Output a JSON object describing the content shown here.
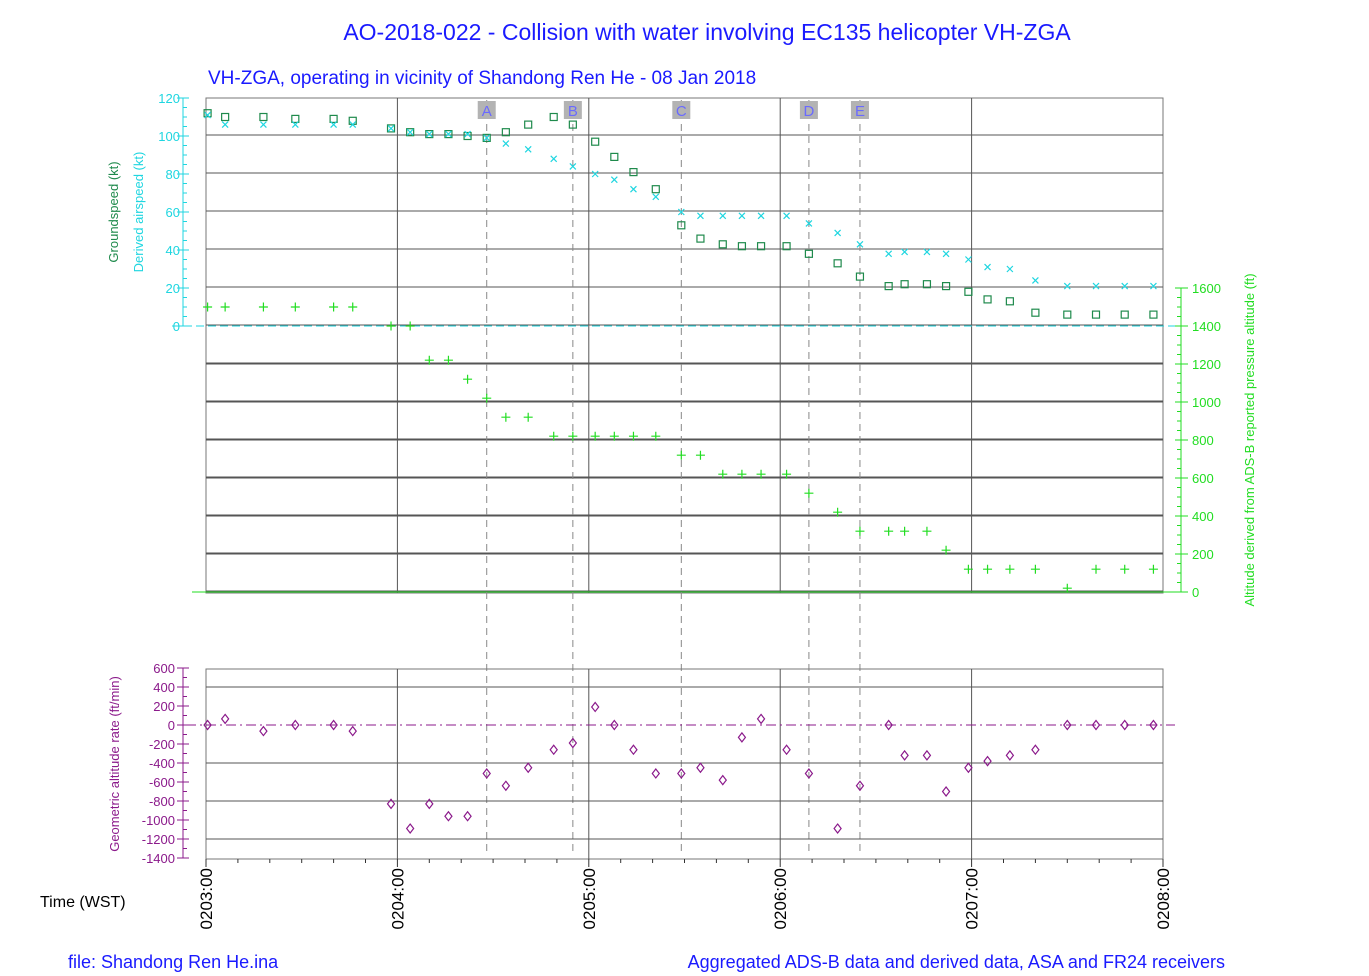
{
  "chart_data": {
    "type": "scatter",
    "title": "AO-2018-022 - Collision with water involving EC135 helicopter VH-ZGA",
    "subtitle": "VH-ZGA, operating in vicinity of Shandong Ren He - 08 Jan 2018",
    "footer_left": "file: Shandong Ren He.ina",
    "footer_right": "Aggregated ADS-B data and derived data, ASA and FR24 receivers",
    "xlabel": "Time (WST)",
    "x_ticks": [
      "0203:00",
      "0204:00",
      "0205:00",
      "0206:00",
      "0207:00",
      "0208:00"
    ],
    "x_range_seconds_after_0203": [
      0,
      300
    ],
    "colors": {
      "groundspeed": "#1f8a4c",
      "airspeed": "#1fd6e0",
      "altitude": "#22dd22",
      "vrate": "#8b1a8b",
      "grid": "#555555",
      "event": "#888888",
      "title": "#1a1aff"
    },
    "speed_axis": {
      "label_groundspeed": "Groundspeed (kt)",
      "label_airspeed": "Derived airspeed (kt)",
      "range": [
        0,
        120
      ],
      "ticks": [
        "0",
        "20",
        "40",
        "60",
        "80",
        "100",
        "120"
      ]
    },
    "altitude_axis": {
      "label": "Altitude derived from ADS-B reported pressure altitude (ft)",
      "range": [
        0,
        1600
      ],
      "ticks": [
        "0",
        "200",
        "400",
        "600",
        "800",
        "1000",
        "1200",
        "1400",
        "1600"
      ]
    },
    "vrate_axis": {
      "label": "Geometric altitude rate (ft/min)",
      "range": [
        -1400,
        600
      ],
      "ticks": [
        "600",
        "400",
        "200",
        "0",
        "-200",
        "-400",
        "-600",
        "-800",
        "-1000",
        "-1200",
        "-1400"
      ]
    },
    "events": [
      {
        "label": "A",
        "t": 88
      },
      {
        "label": "B",
        "t": 115
      },
      {
        "label": "C",
        "t": 149
      },
      {
        "label": "D",
        "t": 189
      },
      {
        "label": "E",
        "t": 205
      }
    ],
    "series": [
      {
        "name": "Groundspeed (kt)",
        "key": "groundspeed",
        "marker": "square",
        "points": [
          [
            0.5,
            112
          ],
          [
            6,
            110
          ],
          [
            18,
            110
          ],
          [
            28,
            109
          ],
          [
            40,
            109
          ],
          [
            46,
            108
          ],
          [
            58,
            104
          ],
          [
            64,
            102
          ],
          [
            70,
            101
          ],
          [
            76,
            101
          ],
          [
            82,
            100
          ],
          [
            88,
            99
          ],
          [
            94,
            102
          ],
          [
            101,
            106
          ],
          [
            109,
            110
          ],
          [
            115,
            106
          ],
          [
            122,
            97
          ],
          [
            128,
            89
          ],
          [
            134,
            81
          ],
          [
            141,
            72
          ],
          [
            149,
            53
          ],
          [
            155,
            46
          ],
          [
            162,
            43
          ],
          [
            168,
            42
          ],
          [
            174,
            42
          ],
          [
            182,
            42
          ],
          [
            189,
            38
          ],
          [
            198,
            33
          ],
          [
            205,
            26
          ],
          [
            214,
            21
          ],
          [
            219,
            22
          ],
          [
            226,
            22
          ],
          [
            232,
            21
          ],
          [
            239,
            18
          ],
          [
            245,
            14
          ],
          [
            252,
            13
          ],
          [
            260,
            7
          ],
          [
            270,
            6
          ],
          [
            279,
            6
          ],
          [
            288,
            6
          ],
          [
            297,
            6
          ]
        ]
      },
      {
        "name": "Derived airspeed (kt)",
        "key": "airspeed",
        "marker": "x",
        "points": [
          [
            0.5,
            111
          ],
          [
            6,
            106
          ],
          [
            18,
            106
          ],
          [
            28,
            106
          ],
          [
            40,
            106
          ],
          [
            46,
            106
          ],
          [
            58,
            104
          ],
          [
            64,
            102
          ],
          [
            70,
            101
          ],
          [
            76,
            101
          ],
          [
            82,
            101
          ],
          [
            88,
            99
          ],
          [
            94,
            96
          ],
          [
            101,
            93
          ],
          [
            109,
            88
          ],
          [
            115,
            84
          ],
          [
            122,
            80
          ],
          [
            128,
            77
          ],
          [
            134,
            72
          ],
          [
            141,
            68
          ],
          [
            149,
            60
          ],
          [
            155,
            58
          ],
          [
            162,
            58
          ],
          [
            168,
            58
          ],
          [
            174,
            58
          ],
          [
            182,
            58
          ],
          [
            189,
            54
          ],
          [
            198,
            49
          ],
          [
            205,
            43
          ],
          [
            214,
            38
          ],
          [
            219,
            39
          ],
          [
            226,
            39
          ],
          [
            232,
            38
          ],
          [
            239,
            35
          ],
          [
            245,
            31
          ],
          [
            252,
            30
          ],
          [
            260,
            24
          ],
          [
            270,
            21
          ],
          [
            279,
            21
          ],
          [
            288,
            21
          ],
          [
            297,
            21
          ]
        ]
      },
      {
        "name": "Altitude (ft)",
        "key": "altitude",
        "marker": "plus",
        "points": [
          [
            0.5,
            1500
          ],
          [
            6,
            1500
          ],
          [
            18,
            1500
          ],
          [
            28,
            1500
          ],
          [
            40,
            1500
          ],
          [
            46,
            1500
          ],
          [
            58,
            1400
          ],
          [
            64,
            1400
          ],
          [
            70,
            1220
          ],
          [
            76,
            1220
          ],
          [
            82,
            1120
          ],
          [
            88,
            1020
          ],
          [
            94,
            920
          ],
          [
            101,
            920
          ],
          [
            109,
            820
          ],
          [
            115,
            820
          ],
          [
            122,
            820
          ],
          [
            128,
            820
          ],
          [
            134,
            820
          ],
          [
            141,
            820
          ],
          [
            149,
            720
          ],
          [
            155,
            720
          ],
          [
            162,
            620
          ],
          [
            168,
            620
          ],
          [
            174,
            620
          ],
          [
            182,
            620
          ],
          [
            189,
            520
          ],
          [
            198,
            420
          ],
          [
            205,
            320
          ],
          [
            214,
            320
          ],
          [
            219,
            320
          ],
          [
            226,
            320
          ],
          [
            232,
            220
          ],
          [
            239,
            120
          ],
          [
            245,
            120
          ],
          [
            252,
            120
          ],
          [
            260,
            120
          ],
          [
            270,
            20
          ],
          [
            279,
            120
          ],
          [
            288,
            120
          ],
          [
            297,
            120
          ]
        ]
      },
      {
        "name": "Geometric altitude rate (ft/min)",
        "key": "vrate",
        "marker": "diamond",
        "points": [
          [
            0.5,
            0
          ],
          [
            6,
            64
          ],
          [
            18,
            -64
          ],
          [
            28,
            0
          ],
          [
            40,
            0
          ],
          [
            46,
            -64
          ],
          [
            58,
            -830
          ],
          [
            64,
            -1090
          ],
          [
            70,
            -830
          ],
          [
            76,
            -960
          ],
          [
            82,
            -960
          ],
          [
            88,
            -510
          ],
          [
            94,
            -640
          ],
          [
            101,
            -450
          ],
          [
            109,
            -260
          ],
          [
            115,
            -190
          ],
          [
            122,
            190
          ],
          [
            128,
            0
          ],
          [
            134,
            -260
          ],
          [
            141,
            -510
          ],
          [
            149,
            -510
          ],
          [
            155,
            -450
          ],
          [
            162,
            -580
          ],
          [
            168,
            -130
          ],
          [
            174,
            64
          ],
          [
            182,
            -260
          ],
          [
            189,
            -510
          ],
          [
            198,
            -1090
          ],
          [
            205,
            -640
          ],
          [
            214,
            0
          ],
          [
            219,
            -320
          ],
          [
            226,
            -320
          ],
          [
            232,
            -700
          ],
          [
            239,
            -450
          ],
          [
            245,
            -380
          ],
          [
            252,
            -320
          ],
          [
            260,
            -260
          ],
          [
            270,
            0
          ],
          [
            279,
            0
          ],
          [
            288,
            0
          ],
          [
            297,
            0
          ]
        ]
      }
    ]
  }
}
